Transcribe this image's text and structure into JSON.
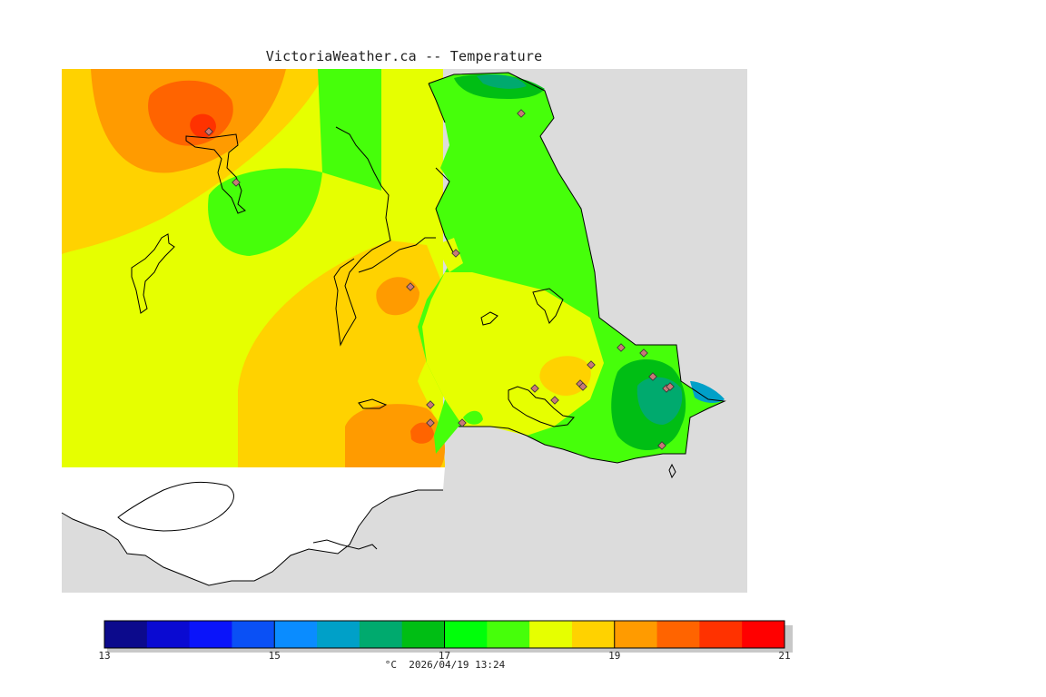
{
  "title": "VictoriaWeather.ca -- Temperature",
  "footer": {
    "units": "°C",
    "timestamp": "2026/04/19 13:24"
  },
  "colorbar": {
    "min": 13,
    "max": 21,
    "step": 0.5,
    "tick_labels": [
      "13",
      "15",
      "17",
      "19",
      "21"
    ],
    "colors": [
      "#0c0a8c",
      "#0a0ad2",
      "#0a14fa",
      "#0a50f5",
      "#0a8cff",
      "#00a0c8",
      "#00aa6e",
      "#00be14",
      "#00ff0a",
      "#46ff0a",
      "#e6ff00",
      "#ffd200",
      "#ff9b00",
      "#ff6400",
      "#ff3200",
      "#ff0000"
    ]
  },
  "map": {
    "ocean_color": "#dcdcdc",
    "outside_domain_color": "#ffffff",
    "station_count": 19
  },
  "chart_data": {
    "type": "heatmap",
    "title": "VictoriaWeather.ca -- Temperature",
    "units": "°C",
    "range": [
      13,
      21
    ],
    "interval": 0.5,
    "stations_shown": 19,
    "temperature_range_observed": [
      15.5,
      20.5
    ]
  }
}
